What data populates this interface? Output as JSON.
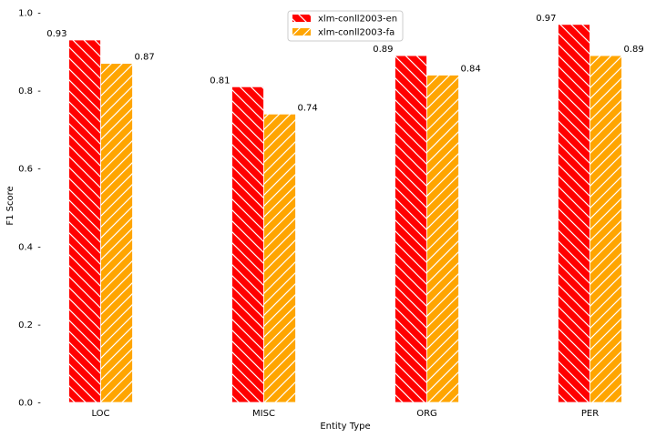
{
  "chart_data": {
    "type": "bar",
    "categories": [
      "LOC",
      "MISC",
      "ORG",
      "PER"
    ],
    "series": [
      {
        "name": "xlm-conll2003-en",
        "values": [
          0.93,
          0.81,
          0.89,
          0.97
        ],
        "labels": [
          "0.93",
          "0.81",
          "0.89",
          "0.97"
        ],
        "color": "#ff0000",
        "hatch": "diagonal-backslash"
      },
      {
        "name": "xlm-conll2003-fa",
        "values": [
          0.87,
          0.74,
          0.84,
          0.89
        ],
        "labels": [
          "0.87",
          "0.74",
          "0.84",
          "0.89"
        ],
        "color": "#ffa500",
        "hatch": "diagonal-slash"
      }
    ],
    "xlabel": "Entity Type",
    "ylabel": "F1 Score",
    "ylim": [
      0,
      1.0
    ],
    "yticks": [
      0.0,
      0.2,
      0.4,
      0.6,
      0.8,
      1.0
    ],
    "ytick_labels": [
      "0.0",
      "0.2",
      "0.4",
      "0.6",
      "0.8",
      "1.0"
    ],
    "legend_position": "top-center",
    "grid": false
  }
}
